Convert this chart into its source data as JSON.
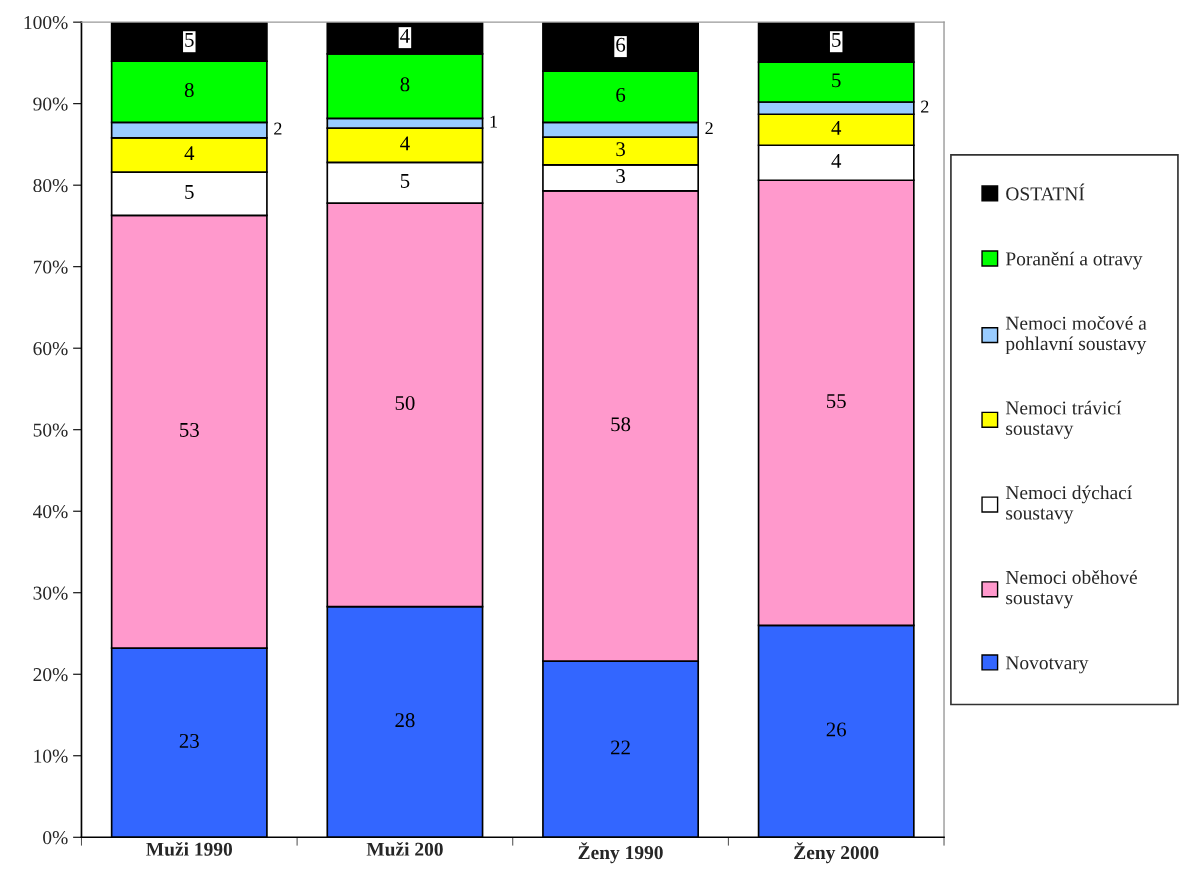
{
  "chart_data": {
    "type": "bar",
    "stacked": true,
    "categories": [
      "Muži 1990",
      "Muži 200",
      "Ženy 1990",
      "Ženy 2000"
    ],
    "series": [
      {
        "name": "Novotvary",
        "color": "#3366ff",
        "values": [
          23.2,
          28.3,
          21.6,
          26.0
        ],
        "value_labels": [
          "23",
          "28",
          "22",
          "26"
        ]
      },
      {
        "name": "Nemoci oběhové soustavy",
        "color": "#ff99cc",
        "values": [
          53.1,
          49.5,
          57.7,
          54.6
        ],
        "value_labels": [
          "53",
          "50",
          "58",
          "55"
        ]
      },
      {
        "name": "Nemoci dýchací soustavy",
        "color": "#ffffff",
        "values": [
          5.3,
          5.0,
          3.2,
          4.3
        ],
        "value_labels": [
          "5",
          "5",
          "3",
          "4"
        ]
      },
      {
        "name": "Nemoci trávicí soustavy",
        "color": "#ffff00",
        "values": [
          4.2,
          4.2,
          3.4,
          3.8
        ],
        "value_labels": [
          "4",
          "4",
          "3",
          "4"
        ]
      },
      {
        "name": "Nemoci močové a pohlavní soustavy",
        "color": "#99ccff",
        "values": [
          1.9,
          1.2,
          1.8,
          1.5
        ],
        "value_labels": [
          "2",
          "1",
          "2",
          "2"
        ]
      },
      {
        "name": "Poranění a otravy",
        "color": "#00ff00",
        "values": [
          7.5,
          7.9,
          6.3,
          4.9
        ],
        "value_labels": [
          "8",
          "8",
          "6",
          "5"
        ]
      },
      {
        "name": "OSTATNÍ",
        "color": "#000000",
        "values": [
          4.8,
          4.0,
          6.0,
          5.0
        ],
        "value_labels": [
          "5",
          "4",
          "6",
          "5"
        ]
      }
    ],
    "ylim": [
      0,
      100
    ],
    "yticks": [
      {
        "value": 0,
        "label": "0%"
      },
      {
        "value": 10,
        "label": "10%"
      },
      {
        "value": 20,
        "label": "20%"
      },
      {
        "value": 30,
        "label": "30%"
      },
      {
        "value": 40,
        "label": "40%"
      },
      {
        "value": 50,
        "label": "50%"
      },
      {
        "value": 60,
        "label": "60%"
      },
      {
        "value": 70,
        "label": "70%"
      },
      {
        "value": 80,
        "label": "80%"
      },
      {
        "value": 90,
        "label": "90%"
      },
      {
        "value": 100,
        "label": "100%"
      }
    ],
    "grid": false,
    "legend": "right"
  }
}
